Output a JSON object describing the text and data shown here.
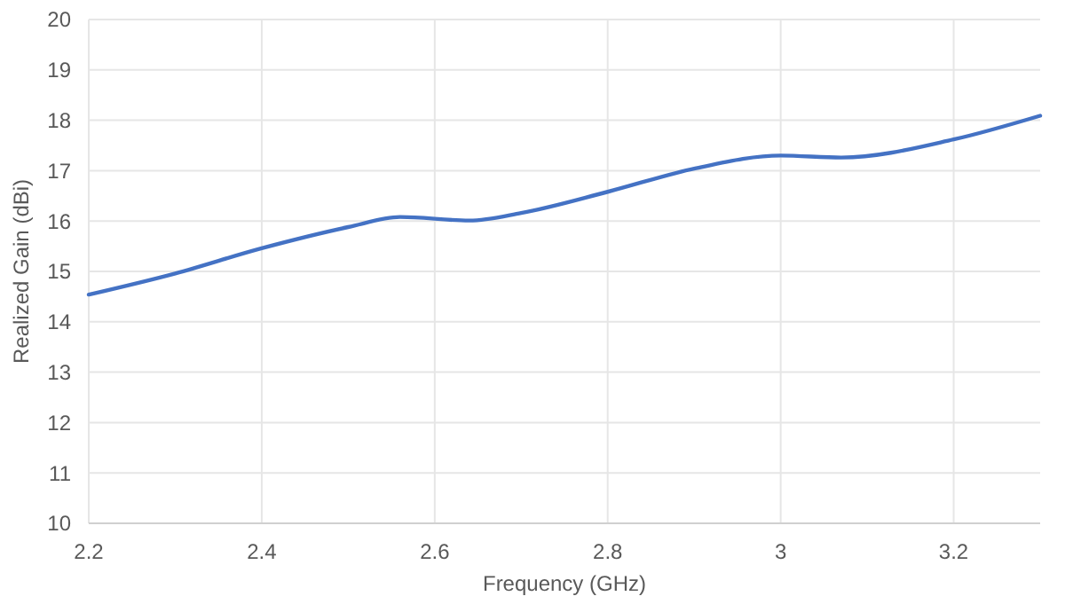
{
  "chart_data": {
    "type": "line",
    "xlabel": "Frequency (GHz)",
    "ylabel": "Realized Gain (dBi)",
    "x": [
      2.2,
      2.3,
      2.4,
      2.5,
      2.56,
      2.64,
      2.7,
      2.8,
      2.9,
      3.0,
      3.07,
      3.2,
      3.3
    ],
    "series": [
      {
        "color": "#4472c4",
        "values": [
          14.54,
          14.96,
          15.46,
          15.88,
          16.08,
          16.01,
          16.16,
          16.58,
          17.04,
          17.3,
          17.26,
          17.62,
          18.09
        ]
      }
    ],
    "xlim": [
      2.2,
      3.3
    ],
    "xticks": [
      {
        "value": 2.2,
        "label": "2.2"
      },
      {
        "value": 2.4,
        "label": "2.4"
      },
      {
        "value": 2.6,
        "label": "2.6"
      },
      {
        "value": 2.8,
        "label": "2.8"
      },
      {
        "value": 3,
        "label": "3"
      },
      {
        "value": 3.2,
        "label": "3.2"
      }
    ],
    "ylim": [
      10,
      20
    ],
    "yticks": [
      10,
      11,
      12,
      13,
      14,
      15,
      16,
      17,
      18,
      19,
      20
    ],
    "grid": true,
    "marker": "none",
    "line_style": "solid"
  }
}
